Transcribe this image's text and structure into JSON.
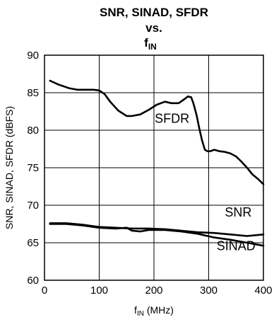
{
  "chart_data": {
    "type": "line",
    "title_lines": [
      "SNR, SINAD, SFDR",
      "vs."
    ],
    "title_fin": {
      "main": "f",
      "sub": "IN"
    },
    "ylabel": "SNR, SINAD, SFDR (dBFS)",
    "xlabel": {
      "main": "f",
      "sub": "IN",
      "suffix": " (MHz)"
    },
    "xlim": [
      0,
      400
    ],
    "ylim": [
      60,
      90
    ],
    "xticks": [
      0,
      100,
      200,
      300,
      400
    ],
    "yticks": [
      60,
      65,
      70,
      75,
      80,
      85,
      90
    ],
    "grid": true,
    "series": [
      {
        "name": "SFDR",
        "x": [
          10,
          25,
          45,
          60,
          75,
          90,
          100,
          110,
          120,
          135,
          150,
          160,
          175,
          190,
          205,
          220,
          232,
          245,
          255,
          262,
          268,
          272,
          278,
          283,
          288,
          293,
          298,
          303,
          310,
          320,
          330,
          340,
          350,
          360,
          370,
          380,
          390,
          400
        ],
        "values": [
          86.6,
          86.1,
          85.6,
          85.4,
          85.4,
          85.4,
          85.3,
          84.8,
          83.8,
          82.6,
          81.9,
          81.9,
          82.1,
          82.7,
          83.4,
          83.8,
          83.6,
          83.6,
          84.1,
          84.5,
          84.4,
          83.6,
          82.0,
          80.2,
          78.6,
          77.4,
          77.2,
          77.2,
          77.4,
          77.2,
          77.1,
          76.9,
          76.5,
          75.8,
          75.0,
          74.1,
          73.5,
          72.8
        ],
        "label_at": [
          233,
          81
        ]
      },
      {
        "name": "SNR",
        "x": [
          10,
          40,
          70,
          100,
          130,
          160,
          190,
          220,
          250,
          280,
          310,
          340,
          370,
          400
        ],
        "values": [
          67.6,
          67.6,
          67.4,
          67.1,
          67.0,
          66.9,
          66.9,
          66.8,
          66.6,
          66.4,
          66.3,
          66.1,
          65.9,
          66.1
        ],
        "label_at": [
          354,
          68.5
        ]
      },
      {
        "name": "SINAD",
        "x": [
          10,
          40,
          70,
          100,
          130,
          150,
          160,
          175,
          190,
          220,
          250,
          280,
          310,
          340,
          370,
          400
        ],
        "values": [
          67.5,
          67.5,
          67.3,
          67.0,
          66.9,
          67.0,
          66.6,
          66.5,
          66.7,
          66.7,
          66.5,
          66.2,
          65.7,
          65.4,
          65.0,
          64.6
        ],
        "label_at": [
          350,
          64.0
        ]
      }
    ]
  }
}
